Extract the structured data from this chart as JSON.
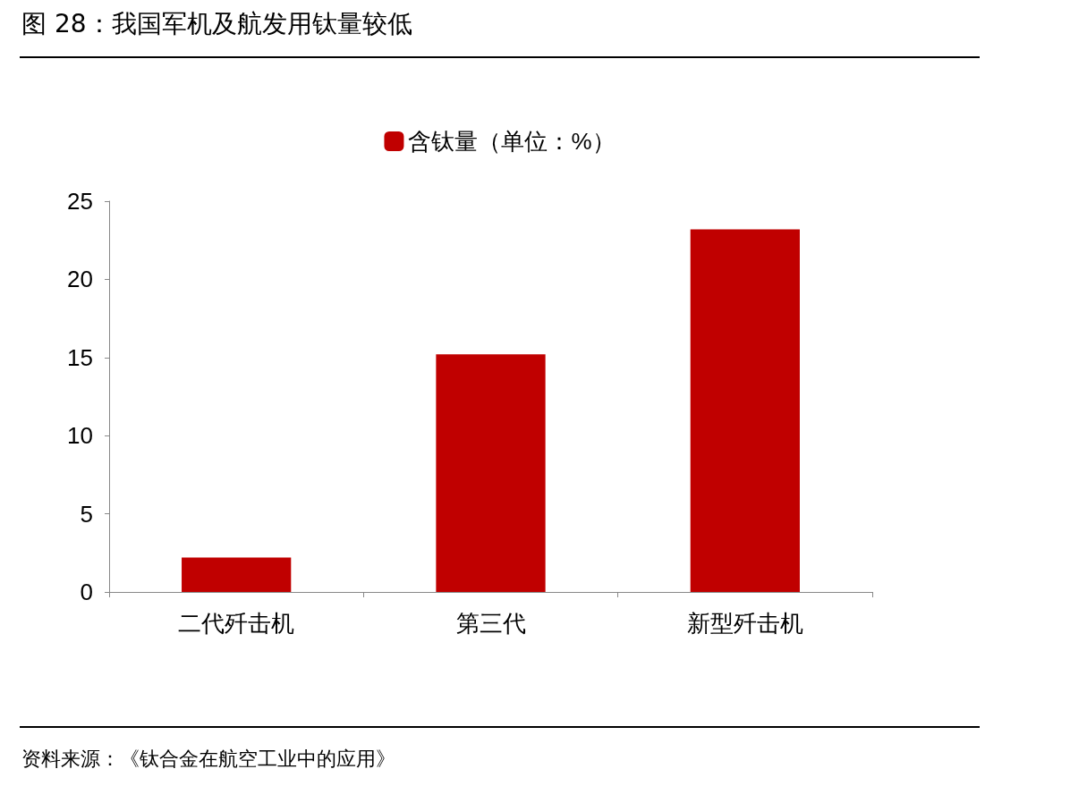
{
  "chart_data": {
    "type": "bar",
    "title": "图 28：我国军机及航发用钛量较低",
    "categories": [
      "二代歼击机",
      "第三代",
      "新型歼击机"
    ],
    "series": [
      {
        "name": "含钛量（单位：%）",
        "color": "#c00000",
        "values": [
          2.2,
          15.2,
          23.2
        ]
      }
    ],
    "ylim": [
      0,
      25
    ],
    "yticks": [
      0,
      5,
      10,
      15,
      20,
      25
    ],
    "grid": false,
    "legend": "top",
    "annotations": [
      "资料来源：《钛合金在航空工业中的应用》"
    ]
  }
}
